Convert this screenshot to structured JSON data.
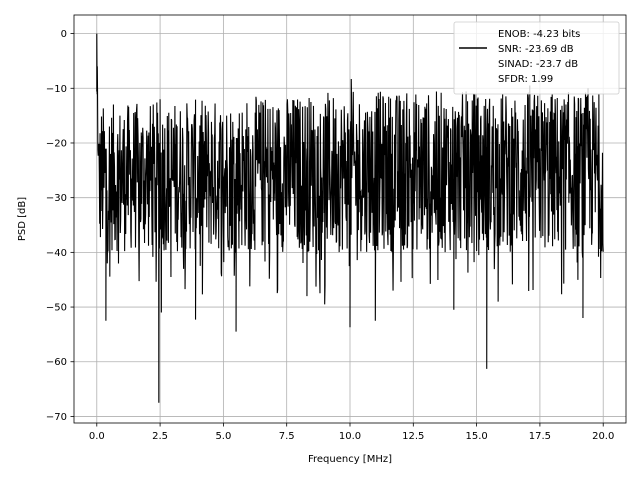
{
  "chart_data": {
    "type": "line",
    "title": "",
    "xlabel": "Frequency [MHz]",
    "ylabel": "PSD [dB]",
    "xlim": [
      -0.9,
      20.9
    ],
    "ylim": [
      -71.2,
      3.4
    ],
    "xticks": [
      0.0,
      2.5,
      5.0,
      7.5,
      10.0,
      12.5,
      15.0,
      17.5,
      20.0
    ],
    "xtick_labels": [
      "0.0",
      "2.5",
      "5.0",
      "7.5",
      "10.0",
      "12.5",
      "15.0",
      "17.5",
      "20.0"
    ],
    "yticks": [
      0,
      -10,
      -20,
      -30,
      -40,
      -50,
      -60,
      -70
    ],
    "ytick_labels": [
      "0",
      "−10",
      "−20",
      "−30",
      "−40",
      "−50",
      "−60",
      "−70"
    ],
    "grid": true,
    "legend_position": "top-right",
    "series": [
      {
        "color": "#000000",
        "description": "dense noise-like power spectral density trace, roughly uniform between about -12 dB and -40 dB across 0-20 MHz",
        "peaks": [
          {
            "x": 0.0,
            "y": 0.0
          },
          {
            "x": 0.02,
            "y": -6.0
          },
          {
            "x": 10.05,
            "y": -8.3
          },
          {
            "x": 2.5,
            "y": -12.0
          },
          {
            "x": 17.1,
            "y": -9.5
          },
          {
            "x": 19.4,
            "y": -10.0
          }
        ],
        "troughs": [
          {
            "x": 0.36,
            "y": -52.5
          },
          {
            "x": 2.45,
            "y": -67.5
          },
          {
            "x": 2.55,
            "y": -51.0
          },
          {
            "x": 3.9,
            "y": -52.3
          },
          {
            "x": 5.5,
            "y": -54.5
          },
          {
            "x": 10.0,
            "y": -53.7
          },
          {
            "x": 11.0,
            "y": -52.5
          },
          {
            "x": 15.4,
            "y": -61.3
          },
          {
            "x": 15.85,
            "y": -49.0
          },
          {
            "x": 19.2,
            "y": -52.0
          },
          {
            "x": 14.1,
            "y": -50.5
          },
          {
            "x": 9.0,
            "y": -49.5
          },
          {
            "x": 8.3,
            "y": -48.0
          }
        ]
      }
    ],
    "legend": [
      {
        "text": "ENOB: -4.23 bits",
        "has_line": false
      },
      {
        "text": "SNR: -23.69 dB",
        "has_line": true
      },
      {
        "text": "SINAD: -23.7 dB",
        "has_line": false
      },
      {
        "text": "SFDR: 1.99",
        "has_line": false
      }
    ]
  },
  "colors": {
    "line": "#000000",
    "grid": "#b0b0b0",
    "axes": "#000000",
    "legend_border": "#cccccc"
  }
}
